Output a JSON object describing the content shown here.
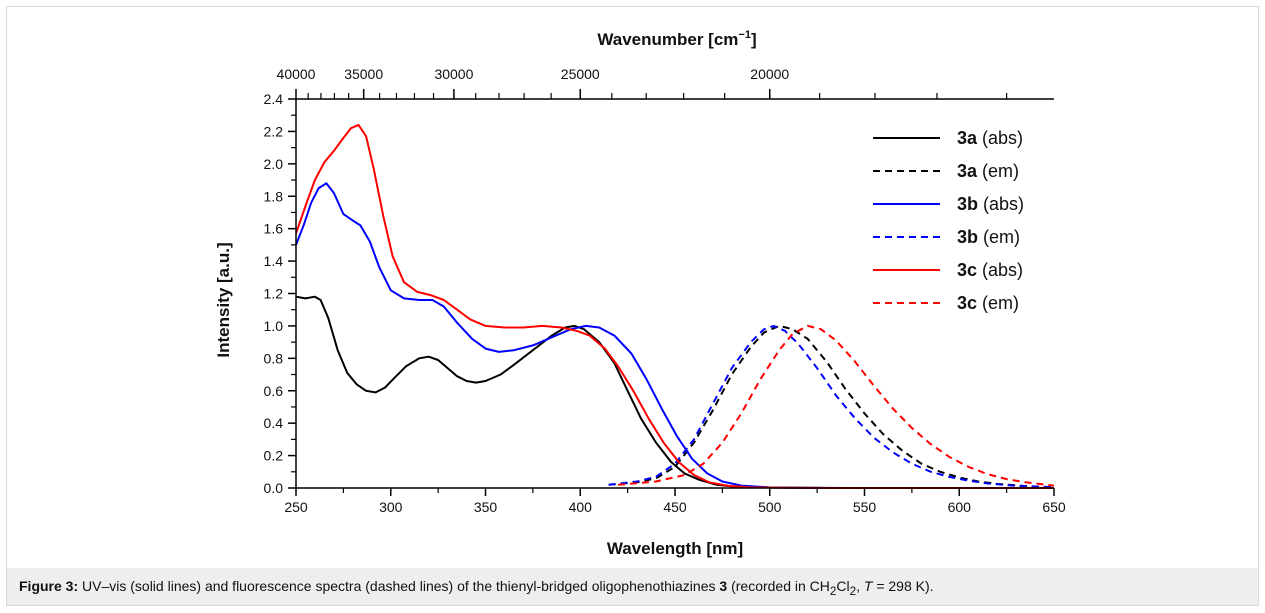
{
  "chart_data": {
    "type": "line",
    "xlabel": "Wavelength [nm]",
    "ylabel": "Intensity [a.u.]",
    "top_xlabel_main": "Wavenumber [cm",
    "top_xlabel_sup": "−1",
    "top_xlabel_end": "]",
    "xlim": [
      250,
      650
    ],
    "ylim": [
      0,
      2.4
    ],
    "x_ticks": [
      250,
      300,
      350,
      400,
      450,
      500,
      550,
      600,
      650
    ],
    "y_ticks": [
      0.0,
      0.2,
      0.4,
      0.6,
      0.8,
      1.0,
      1.2,
      1.4,
      1.6,
      1.8,
      2.0,
      2.2,
      2.4
    ],
    "x_tick_labels": [
      "250",
      "300",
      "350",
      "400",
      "450",
      "500",
      "550",
      "600",
      "650"
    ],
    "y_tick_labels": [
      "0.0",
      "0.2",
      "0.4",
      "0.6",
      "0.8",
      "1.0",
      "1.2",
      "1.4",
      "1.6",
      "1.8",
      "2.0",
      "2.2",
      "2.4"
    ],
    "top_ticks_cm": [
      40000,
      35000,
      30000,
      25000,
      20000
    ],
    "top_tick_labels": [
      "40000",
      "35000",
      "30000",
      "25000",
      "20000"
    ],
    "top_minor_step_cm": 1000,
    "legend_position": "top-right",
    "grid": false,
    "series": [
      {
        "name_bold": "3a",
        "name_rest": " (abs)",
        "color": "#000000",
        "dash": false,
        "points": [
          [
            250,
            1.18
          ],
          [
            255,
            1.17
          ],
          [
            260,
            1.18
          ],
          [
            263,
            1.16
          ],
          [
            267,
            1.05
          ],
          [
            272,
            0.85
          ],
          [
            277,
            0.71
          ],
          [
            282,
            0.64
          ],
          [
            287,
            0.6
          ],
          [
            292,
            0.59
          ],
          [
            297,
            0.62
          ],
          [
            302,
            0.68
          ],
          [
            308,
            0.75
          ],
          [
            315,
            0.8
          ],
          [
            320,
            0.81
          ],
          [
            325,
            0.79
          ],
          [
            330,
            0.74
          ],
          [
            335,
            0.69
          ],
          [
            340,
            0.66
          ],
          [
            345,
            0.65
          ],
          [
            350,
            0.66
          ],
          [
            358,
            0.7
          ],
          [
            365,
            0.76
          ],
          [
            375,
            0.85
          ],
          [
            385,
            0.94
          ],
          [
            392,
            0.99
          ],
          [
            397,
            1.0
          ],
          [
            402,
            0.98
          ],
          [
            410,
            0.9
          ],
          [
            418,
            0.77
          ],
          [
            425,
            0.6
          ],
          [
            432,
            0.43
          ],
          [
            440,
            0.28
          ],
          [
            448,
            0.16
          ],
          [
            455,
            0.09
          ],
          [
            463,
            0.05
          ],
          [
            472,
            0.02
          ],
          [
            482,
            0.008
          ],
          [
            495,
            0.003
          ],
          [
            510,
            0.001
          ],
          [
            530,
            0.0
          ],
          [
            650,
            0.0
          ]
        ]
      },
      {
        "name_bold": "3a",
        "name_rest": " (em)",
        "color": "#000000",
        "dash": true,
        "points": [
          [
            415,
            0.02
          ],
          [
            430,
            0.035
          ],
          [
            440,
            0.06
          ],
          [
            450,
            0.13
          ],
          [
            460,
            0.28
          ],
          [
            470,
            0.48
          ],
          [
            480,
            0.7
          ],
          [
            490,
            0.87
          ],
          [
            497,
            0.96
          ],
          [
            505,
            1.0
          ],
          [
            512,
            0.98
          ],
          [
            520,
            0.92
          ],
          [
            530,
            0.78
          ],
          [
            540,
            0.61
          ],
          [
            550,
            0.46
          ],
          [
            560,
            0.33
          ],
          [
            570,
            0.23
          ],
          [
            580,
            0.15
          ],
          [
            590,
            0.1
          ],
          [
            600,
            0.065
          ],
          [
            610,
            0.04
          ],
          [
            620,
            0.025
          ],
          [
            635,
            0.012
          ],
          [
            650,
            0.005
          ]
        ]
      },
      {
        "name_bold": "3b",
        "name_rest": " (abs)",
        "color": "#0000ff",
        "dash": false,
        "points": [
          [
            250,
            1.5
          ],
          [
            254,
            1.62
          ],
          [
            258,
            1.76
          ],
          [
            262,
            1.85
          ],
          [
            266,
            1.88
          ],
          [
            270,
            1.82
          ],
          [
            275,
            1.69
          ],
          [
            280,
            1.65
          ],
          [
            284,
            1.62
          ],
          [
            289,
            1.52
          ],
          [
            294,
            1.36
          ],
          [
            300,
            1.22
          ],
          [
            307,
            1.17
          ],
          [
            315,
            1.16
          ],
          [
            322,
            1.16
          ],
          [
            328,
            1.12
          ],
          [
            335,
            1.02
          ],
          [
            343,
            0.92
          ],
          [
            350,
            0.86
          ],
          [
            357,
            0.84
          ],
          [
            365,
            0.85
          ],
          [
            375,
            0.88
          ],
          [
            385,
            0.93
          ],
          [
            395,
            0.98
          ],
          [
            403,
            1.0
          ],
          [
            410,
            0.99
          ],
          [
            418,
            0.94
          ],
          [
            427,
            0.83
          ],
          [
            435,
            0.67
          ],
          [
            443,
            0.49
          ],
          [
            451,
            0.32
          ],
          [
            459,
            0.18
          ],
          [
            467,
            0.09
          ],
          [
            475,
            0.04
          ],
          [
            485,
            0.015
          ],
          [
            500,
            0.004
          ],
          [
            520,
            0.001
          ],
          [
            540,
            0.0
          ],
          [
            650,
            0.0
          ]
        ]
      },
      {
        "name_bold": "3b",
        "name_rest": " (em)",
        "color": "#0000ff",
        "dash": true,
        "points": [
          [
            415,
            0.02
          ],
          [
            430,
            0.04
          ],
          [
            440,
            0.07
          ],
          [
            450,
            0.15
          ],
          [
            460,
            0.3
          ],
          [
            470,
            0.52
          ],
          [
            480,
            0.74
          ],
          [
            490,
            0.9
          ],
          [
            497,
            0.98
          ],
          [
            502,
            1.0
          ],
          [
            508,
            0.97
          ],
          [
            515,
            0.89
          ],
          [
            525,
            0.74
          ],
          [
            535,
            0.57
          ],
          [
            545,
            0.43
          ],
          [
            555,
            0.31
          ],
          [
            565,
            0.22
          ],
          [
            575,
            0.15
          ],
          [
            585,
            0.1
          ],
          [
            595,
            0.068
          ],
          [
            605,
            0.045
          ],
          [
            615,
            0.028
          ],
          [
            630,
            0.013
          ],
          [
            650,
            0.005
          ]
        ]
      },
      {
        "name_bold": "3c",
        "name_rest": " (abs)",
        "color": "#ff0000",
        "dash": false,
        "points": [
          [
            250,
            1.57
          ],
          [
            255,
            1.74
          ],
          [
            260,
            1.9
          ],
          [
            265,
            2.01
          ],
          [
            270,
            2.08
          ],
          [
            275,
            2.16
          ],
          [
            279,
            2.22
          ],
          [
            283,
            2.24
          ],
          [
            287,
            2.17
          ],
          [
            291,
            1.97
          ],
          [
            296,
            1.68
          ],
          [
            301,
            1.43
          ],
          [
            307,
            1.27
          ],
          [
            314,
            1.21
          ],
          [
            321,
            1.19
          ],
          [
            328,
            1.16
          ],
          [
            335,
            1.1
          ],
          [
            342,
            1.04
          ],
          [
            350,
            1.0
          ],
          [
            360,
            0.99
          ],
          [
            370,
            0.99
          ],
          [
            380,
            1.0
          ],
          [
            390,
            0.99
          ],
          [
            398,
            0.97
          ],
          [
            405,
            0.94
          ],
          [
            413,
            0.86
          ],
          [
            420,
            0.75
          ],
          [
            428,
            0.6
          ],
          [
            436,
            0.43
          ],
          [
            444,
            0.28
          ],
          [
            452,
            0.16
          ],
          [
            460,
            0.08
          ],
          [
            468,
            0.035
          ],
          [
            478,
            0.013
          ],
          [
            490,
            0.004
          ],
          [
            510,
            0.001
          ],
          [
            530,
            0.0
          ],
          [
            650,
            0.0
          ]
        ]
      },
      {
        "name_bold": "3c",
        "name_rest": " (em)",
        "color": "#ff0000",
        "dash": true,
        "points": [
          [
            420,
            0.02
          ],
          [
            440,
            0.04
          ],
          [
            455,
            0.08
          ],
          [
            465,
            0.15
          ],
          [
            475,
            0.28
          ],
          [
            485,
            0.46
          ],
          [
            495,
            0.67
          ],
          [
            505,
            0.85
          ],
          [
            512,
            0.95
          ],
          [
            520,
            1.0
          ],
          [
            527,
            0.98
          ],
          [
            535,
            0.91
          ],
          [
            545,
            0.78
          ],
          [
            555,
            0.63
          ],
          [
            565,
            0.49
          ],
          [
            575,
            0.37
          ],
          [
            585,
            0.27
          ],
          [
            595,
            0.19
          ],
          [
            605,
            0.13
          ],
          [
            615,
            0.085
          ],
          [
            625,
            0.055
          ],
          [
            635,
            0.035
          ],
          [
            650,
            0.015
          ]
        ]
      }
    ]
  },
  "caption": {
    "label": "Figure 3:",
    "t1": " UV–vis (solid lines) and fluorescence spectra (dashed lines) of the thienyl-bridged oligophenothiazines ",
    "compound": "3",
    "t2": " (recorded in CH",
    "sub1": "2",
    "t3": "Cl",
    "sub2": "2",
    "t4": ", ",
    "temp_var": "T",
    "t5": " = 298 K)."
  }
}
